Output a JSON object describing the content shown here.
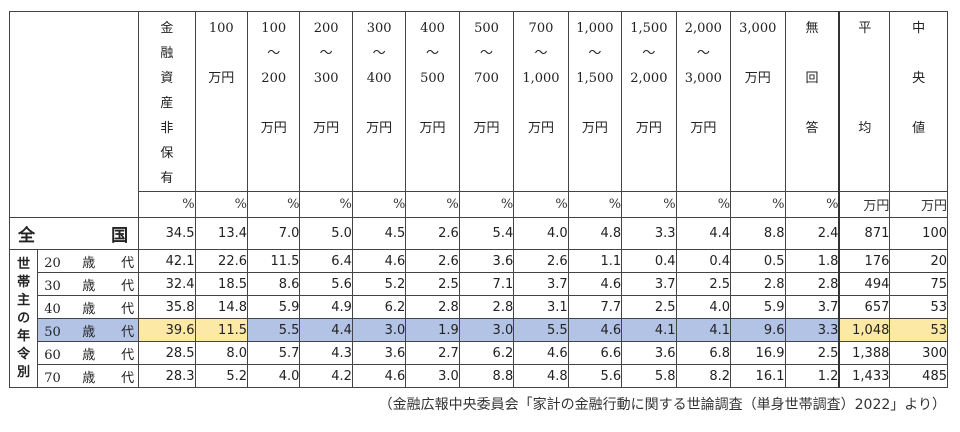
{
  "headers": [
    "金\n融\n資\n産\n非\n保\n有",
    "100\n\n万円",
    "100\n〜\n200\n\n万円",
    "200\n〜\n300\n\n万円",
    "300\n〜\n400\n\n万円",
    "400\n〜\n500\n\n万円",
    "500\n〜\n700\n\n万円",
    "700\n〜\n1,000\n\n万円",
    "1,000\n〜\n1,500\n\n万円",
    "1,500\n〜\n2,000\n\n万円",
    "2,000\n〜\n3,000\n\n万円",
    "3,000\n\n万円",
    "無\n\n回\n\n答",
    "平\n\n\n\n均",
    "中\n\n央\n\n値"
  ],
  "units": [
    "%",
    "%",
    "%",
    "%",
    "%",
    "%",
    "%",
    "%",
    "%",
    "%",
    "%",
    "%",
    "%",
    "万円",
    "万円"
  ],
  "national": {
    "label_left": "全",
    "label_right": "国",
    "values": [
      "34.5",
      "13.4",
      "7.0",
      "5.0",
      "4.5",
      "2.6",
      "5.4",
      "4.0",
      "4.8",
      "3.3",
      "4.4",
      "8.8",
      "2.4",
      "871",
      "100"
    ]
  },
  "side_label": [
    "世",
    "帯",
    "主",
    "の",
    "年",
    "令",
    "別"
  ],
  "age_suffix_1": "歳",
  "age_suffix_2": "代",
  "rows": [
    {
      "age": "20",
      "values": [
        "42.1",
        "22.6",
        "11.5",
        "6.4",
        "4.6",
        "2.6",
        "3.6",
        "2.6",
        "1.1",
        "0.4",
        "0.4",
        "0.5",
        "1.8",
        "176",
        "20"
      ]
    },
    {
      "age": "30",
      "values": [
        "32.4",
        "18.5",
        "8.6",
        "5.6",
        "5.2",
        "2.5",
        "7.1",
        "3.7",
        "4.6",
        "3.7",
        "2.5",
        "2.8",
        "2.8",
        "494",
        "75"
      ]
    },
    {
      "age": "40",
      "values": [
        "35.8",
        "14.8",
        "5.9",
        "4.9",
        "6.2",
        "2.8",
        "2.8",
        "3.1",
        "7.7",
        "2.5",
        "4.0",
        "5.9",
        "3.7",
        "657",
        "53"
      ]
    },
    {
      "age": "50",
      "values": [
        "39.6",
        "11.5",
        "5.5",
        "4.4",
        "3.0",
        "1.9",
        "3.0",
        "5.5",
        "4.6",
        "4.1",
        "4.1",
        "9.6",
        "3.3",
        "1,048",
        "53"
      ]
    },
    {
      "age": "60",
      "values": [
        "28.5",
        "8.0",
        "5.7",
        "4.3",
        "3.6",
        "2.7",
        "6.2",
        "4.6",
        "6.6",
        "3.6",
        "6.8",
        "16.9",
        "2.5",
        "1,388",
        "300"
      ]
    },
    {
      "age": "70",
      "values": [
        "28.3",
        "5.2",
        "4.0",
        "4.2",
        "4.6",
        "3.0",
        "8.8",
        "4.8",
        "5.6",
        "5.8",
        "8.2",
        "16.1",
        "1.2",
        "1,433",
        "485"
      ]
    }
  ],
  "caption": "（金融広報中央委員会「家計の金融行動に関する世論調査（単身世帯調査）2022」より）"
}
